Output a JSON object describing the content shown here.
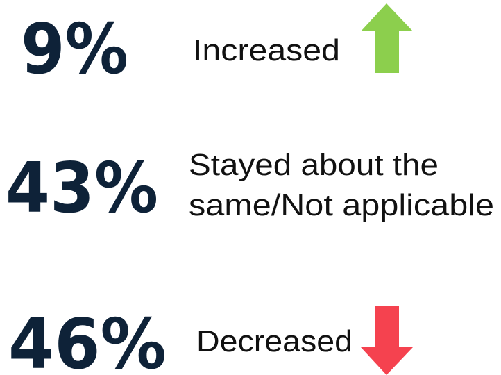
{
  "items": [
    {
      "value": "9%",
      "label": [
        "Increased"
      ]
    },
    {
      "value": "43%",
      "label": [
        "Stayed about the",
        "same/Not applicable"
      ]
    },
    {
      "value": "46%",
      "label": [
        "Decreased"
      ]
    }
  ]
}
